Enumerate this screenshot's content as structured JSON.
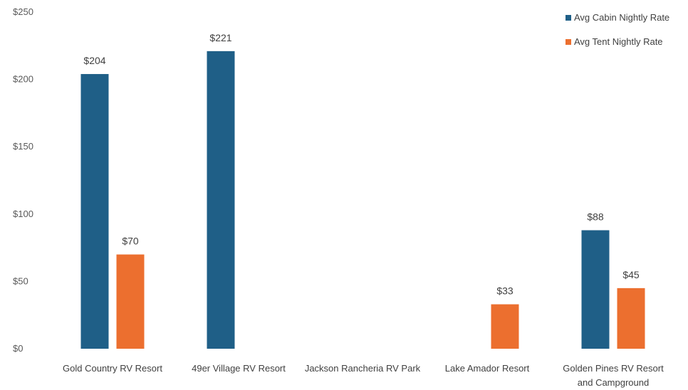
{
  "chart_data": {
    "type": "bar",
    "title": "",
    "xlabel": "",
    "ylabel": "",
    "ylim": [
      0,
      250
    ],
    "y_ticks": [
      "$0",
      "$50",
      "$100",
      "$150",
      "$200",
      "$250"
    ],
    "y_tick_values": [
      0,
      50,
      100,
      150,
      200,
      250
    ],
    "grid": false,
    "legend_position": "top-right",
    "categories": [
      [
        "Gold Country RV Resort"
      ],
      [
        "49er Village RV Resort"
      ],
      [
        "Jackson Rancheria RV Park"
      ],
      [
        "Lake Amador Resort"
      ],
      [
        "Golden Pines RV Resort",
        "and Campground"
      ]
    ],
    "series": [
      {
        "name": "Avg Cabin Nightly Rate",
        "color": "#1f5f87",
        "values": [
          204,
          221,
          null,
          null,
          88
        ],
        "labels": [
          "$204",
          "$221",
          "",
          "",
          "$88"
        ]
      },
      {
        "name": "Avg Tent Nightly Rate",
        "color": "#ec6f2f",
        "values": [
          70,
          null,
          null,
          33,
          45
        ],
        "labels": [
          "$70",
          "",
          "",
          "$33",
          "$45"
        ]
      }
    ]
  }
}
